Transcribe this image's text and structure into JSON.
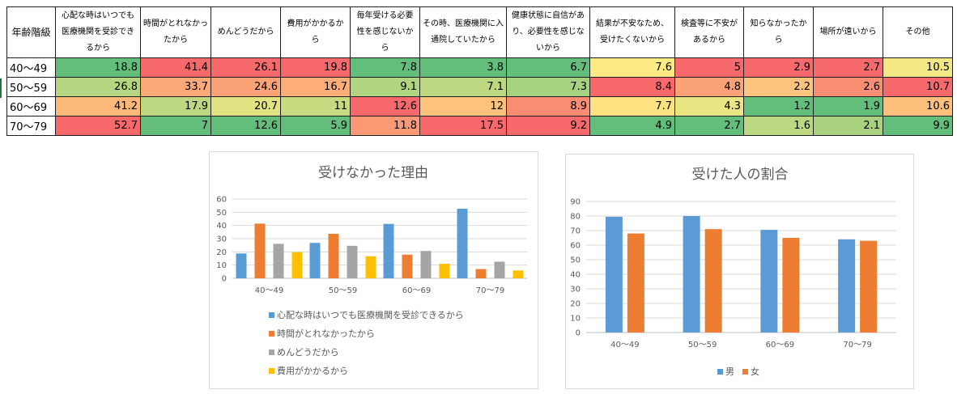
{
  "table": {
    "headers": [
      "年齢階級",
      "心配な時はいつでも医療機関を受診できるから",
      "時間がとれなかったから",
      "めんどうだから",
      "費用がかかるから",
      "毎年受ける必要性を感じないから",
      "その時、医療機関に入通院していたから",
      "健康状態に自信があり、必要性を感じないから",
      "結果が不安なため、受けたくないから",
      "検査等に不安があるから",
      "知らなかったから",
      "場所が遠いから",
      "その他"
    ],
    "rows": [
      {
        "age": "40～49",
        "values": [
          "18.8",
          "41.4",
          "26.1",
          "19.8",
          "7.8",
          "3.8",
          "6.7",
          "7.6",
          "5",
          "2.9",
          "2.7",
          "10.5"
        ]
      },
      {
        "age": "50～59",
        "values": [
          "26.8",
          "33.7",
          "24.6",
          "16.7",
          "9.1",
          "7.1",
          "7.3",
          "8.4",
          "4.8",
          "2.2",
          "2.6",
          "10.7"
        ]
      },
      {
        "age": "60～69",
        "values": [
          "41.2",
          "17.9",
          "20.7",
          "11",
          "12.6",
          "12",
          "8.9",
          "7.7",
          "4.3",
          "1.2",
          "1.9",
          "10.6"
        ]
      },
      {
        "age": "70～79",
        "values": [
          "52.7",
          "7",
          "12.6",
          "5.9",
          "11.8",
          "17.5",
          "9.2",
          "4.9",
          "2.7",
          "1.6",
          "2.1",
          "9.9"
        ]
      }
    ]
  },
  "colors": {
    "scale_low": "#63be7b",
    "scale_mid": "#ffeb84",
    "scale_high": "#f8696b",
    "blue": "#5b9bd5",
    "orange": "#ed7d31",
    "gray": "#a5a5a5",
    "yellow": "#ffc000"
  },
  "chart_data": [
    {
      "type": "bar",
      "title": "受けなかった理由",
      "categories": [
        "40～49",
        "50～59",
        "60～69",
        "70～79"
      ],
      "ylim": [
        0,
        60
      ],
      "yticks": [
        0,
        10,
        20,
        30,
        40,
        50,
        60
      ],
      "grid": true,
      "legend_position": "bottom",
      "series": [
        {
          "name": "心配な時はいつでも医療機関を受診できるから",
          "values": [
            18.8,
            26.8,
            41.2,
            52.7
          ],
          "color": "#5b9bd5"
        },
        {
          "name": "時間がとれなかったから",
          "values": [
            41.4,
            33.7,
            17.9,
            7
          ],
          "color": "#ed7d31"
        },
        {
          "name": "めんどうだから",
          "values": [
            26.1,
            24.6,
            20.7,
            12.6
          ],
          "color": "#a5a5a5"
        },
        {
          "name": "費用がかかるから",
          "values": [
            19.8,
            16.7,
            11,
            5.9
          ],
          "color": "#ffc000"
        }
      ]
    },
    {
      "type": "bar",
      "title": "受けた人の割合",
      "categories": [
        "40～49",
        "50～59",
        "60～69",
        "70～79"
      ],
      "ylim": [
        0,
        90
      ],
      "yticks": [
        0,
        10,
        20,
        30,
        40,
        50,
        60,
        70,
        80,
        90
      ],
      "grid": true,
      "legend_position": "bottom",
      "series": [
        {
          "name": "男",
          "values": [
            79.5,
            80,
            70.5,
            64
          ],
          "color": "#5b9bd5"
        },
        {
          "name": "女",
          "values": [
            68,
            71,
            65,
            63
          ],
          "color": "#ed7d31"
        }
      ]
    }
  ]
}
